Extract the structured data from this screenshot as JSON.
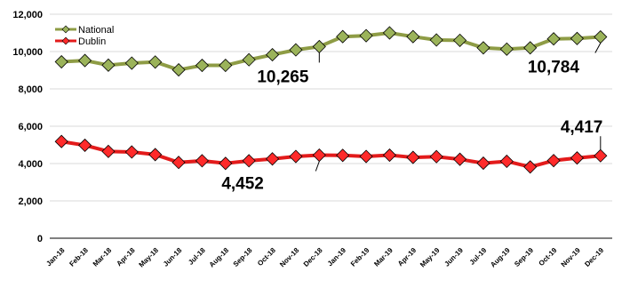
{
  "chart_data": {
    "type": "line",
    "categories": [
      "Jan-18",
      "Feb-18",
      "Mar-18",
      "Apr-18",
      "May-18",
      "Jun-18",
      "Jul-18",
      "Aug-18",
      "Sep-18",
      "Oct-18",
      "Nov-18",
      "Dec-18",
      "Jan-19",
      "Feb-19",
      "Mar-19",
      "Apr-19",
      "May-19",
      "Jun-19",
      "Jul-19",
      "Aug-19",
      "Sep-19",
      "Oct-19",
      "Nov-19",
      "Dec-19"
    ],
    "series": [
      {
        "name": "National",
        "color": "#8e9c45",
        "marker_color": "#9bb35a",
        "values": [
          9450,
          9520,
          9270,
          9380,
          9440,
          9020,
          9260,
          9260,
          9560,
          9830,
          10090,
          10265,
          10800,
          10850,
          11000,
          10800,
          10620,
          10600,
          10200,
          10130,
          10200,
          10680,
          10700,
          10784
        ]
      },
      {
        "name": "Dublin",
        "color": "#e31b1b",
        "marker_color": "#ff2a2a",
        "values": [
          5180,
          4980,
          4650,
          4620,
          4480,
          4060,
          4150,
          4010,
          4150,
          4250,
          4380,
          4452,
          4440,
          4380,
          4450,
          4330,
          4370,
          4230,
          4020,
          4120,
          3820,
          4160,
          4300,
          4417
        ]
      }
    ],
    "ylim": [
      0,
      12000
    ],
    "yticks": [
      0,
      2000,
      4000,
      6000,
      8000,
      10000,
      12000
    ],
    "ytick_labels": [
      "0",
      "2,000",
      "4,000",
      "6,000",
      "8,000",
      "10,000",
      "12,000"
    ],
    "grid": true,
    "legend_position": "top-left",
    "title": "",
    "xlabel": "",
    "ylabel": "",
    "annotations": [
      {
        "text": "10,265",
        "series": 0,
        "index": 11
      },
      {
        "text": "10,784",
        "series": 0,
        "index": 23
      },
      {
        "text": "4,452",
        "series": 1,
        "index": 11
      },
      {
        "text": "4,417",
        "series": 1,
        "index": 23
      }
    ]
  }
}
